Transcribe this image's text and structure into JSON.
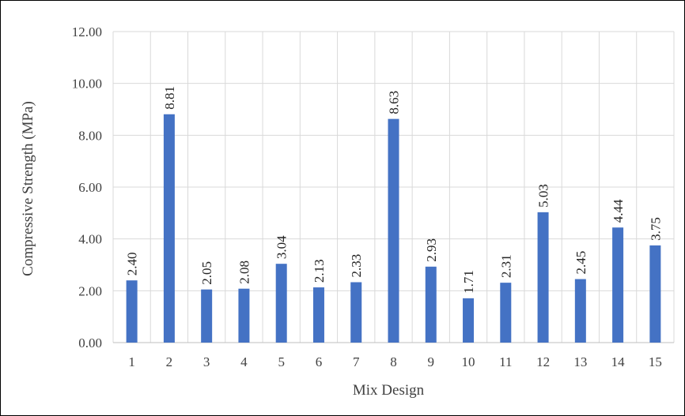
{
  "chart_data": {
    "type": "bar",
    "categories": [
      "1",
      "2",
      "3",
      "4",
      "5",
      "6",
      "7",
      "8",
      "9",
      "10",
      "11",
      "12",
      "13",
      "14",
      "15"
    ],
    "values": [
      2.4,
      8.81,
      2.05,
      2.08,
      3.04,
      2.13,
      2.33,
      8.63,
      2.93,
      1.71,
      2.31,
      5.03,
      2.45,
      4.44,
      3.75
    ],
    "value_labels": [
      "2.40",
      "8.81",
      "2.05",
      "2.08",
      "3.04",
      "2.13",
      "2.33",
      "8.63",
      "2.93",
      "1.71",
      "2.31",
      "5.03",
      "2.45",
      "4.44",
      "3.75"
    ],
    "xlabel": "Mix Design",
    "ylabel": "Compressive Strength (MPa)",
    "ylim": [
      0,
      12
    ],
    "yticks": [
      "0.00",
      "2.00",
      "4.00",
      "6.00",
      "8.00",
      "10.00",
      "12.00"
    ],
    "grid": true,
    "bar_color": "#4472c4"
  }
}
